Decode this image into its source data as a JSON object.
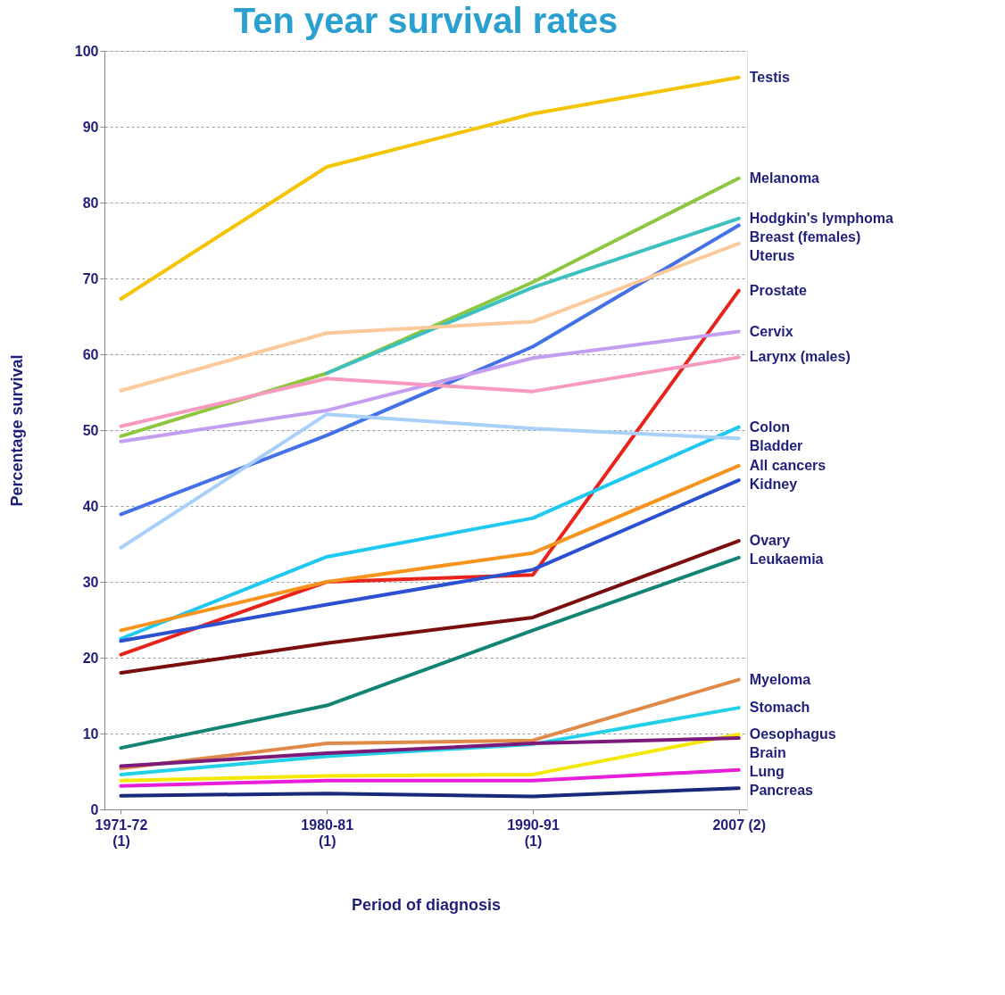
{
  "chart_data": {
    "type": "line",
    "title": "Ten year survival rates",
    "xlabel": "Period of diagnosis",
    "ylabel": "Percentage survival",
    "categories": [
      "1971-72\n(1)",
      "1980-81\n(1)",
      "1990-91\n(1)",
      "2007 (2)"
    ],
    "ylim": [
      0,
      100
    ],
    "yticks": [
      0,
      10,
      20,
      30,
      40,
      50,
      60,
      70,
      80,
      90,
      100
    ],
    "grid": "y",
    "line_style": "solid",
    "series": [
      {
        "name": "Testis",
        "color": "#f5c400",
        "values": [
          67.3,
          84.7,
          91.7,
          96.5
        ]
      },
      {
        "name": "Melanoma",
        "color": "#8dc63f",
        "values": [
          49.2,
          57.5,
          69.5,
          83.2
        ]
      },
      {
        "name": "Hodgkin's lymphoma",
        "color": "#3cc0c0",
        "values": [
          null,
          57.5,
          68.8,
          77.9
        ]
      },
      {
        "name": "Breast (females)",
        "color": "#4470e8",
        "values": [
          38.9,
          49.3,
          61.0,
          77.0
        ]
      },
      {
        "name": "Uterus",
        "color": "#fbc99a",
        "values": [
          55.2,
          62.8,
          64.3,
          74.6
        ]
      },
      {
        "name": "Prostate",
        "color": "#e8231c",
        "values": [
          20.4,
          30.0,
          30.9,
          68.4
        ]
      },
      {
        "name": "Cervix",
        "color": "#c39ef0",
        "values": [
          48.5,
          52.6,
          59.5,
          63.0
        ]
      },
      {
        "name": "Larynx (males)",
        "color": "#f79ac0",
        "values": [
          50.5,
          56.8,
          55.1,
          59.6
        ]
      },
      {
        "name": "Colon",
        "color": "#1ec8f0",
        "values": [
          22.5,
          33.3,
          38.4,
          50.4
        ]
      },
      {
        "name": "Bladder",
        "color": "#a8d0f8",
        "values": [
          34.5,
          52.1,
          50.2,
          48.9
        ]
      },
      {
        "name": "All cancers",
        "color": "#f7941d",
        "values": [
          23.6,
          30.0,
          33.8,
          45.3
        ]
      },
      {
        "name": "Kidney",
        "color": "#2b50d0",
        "values": [
          22.2,
          27.0,
          31.6,
          43.4
        ]
      },
      {
        "name": "Ovary",
        "color": "#7a0e0e",
        "values": [
          18.0,
          21.9,
          25.3,
          35.4
        ]
      },
      {
        "name": "Leukaemia",
        "color": "#138474",
        "values": [
          8.1,
          13.7,
          23.6,
          33.2
        ]
      },
      {
        "name": "Myeloma",
        "color": "#e08a4a",
        "values": [
          5.4,
          8.7,
          9.1,
          17.1
        ]
      },
      {
        "name": "Stomach",
        "color": "#22d0e8",
        "values": [
          4.6,
          7.0,
          8.6,
          13.4
        ]
      },
      {
        "name": "Oesophagus",
        "color": "#f5e800",
        "values": [
          3.8,
          4.4,
          4.6,
          9.9
        ]
      },
      {
        "name": "Brain",
        "color": "#7b1a7b",
        "values": [
          5.7,
          7.4,
          8.7,
          9.4
        ]
      },
      {
        "name": "Lung",
        "color": "#e81ed8",
        "values": [
          3.1,
          3.8,
          3.8,
          5.2
        ]
      },
      {
        "name": "Pancreas",
        "color": "#1a2a7a",
        "values": [
          1.8,
          2.1,
          1.7,
          2.8
        ]
      }
    ]
  }
}
